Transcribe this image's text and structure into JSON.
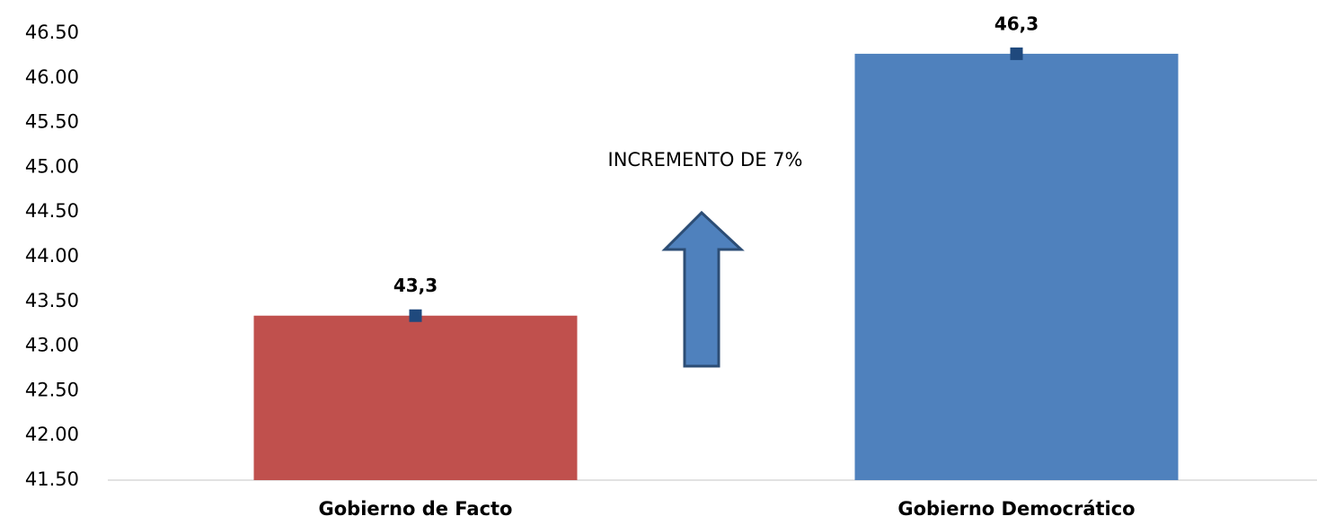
{
  "chart_data": {
    "type": "bar",
    "categories": [
      "Gobierno de Facto",
      "Gobierno Democrático"
    ],
    "values": [
      43.34,
      46.27
    ],
    "value_labels": [
      "43,3",
      "46,3"
    ],
    "colors": [
      "#c0504d",
      "#4f81bd"
    ],
    "marker_color": "#1f497d",
    "ylim": [
      41.5,
      46.5
    ],
    "yticks": [
      {
        "value": 41.5,
        "label": "41.50"
      },
      {
        "value": 42,
        "label": "42.00"
      },
      {
        "value": 42.5,
        "label": "42.50"
      },
      {
        "value": 43,
        "label": "43.00"
      },
      {
        "value": 43.5,
        "label": "43.50"
      },
      {
        "value": 44,
        "label": "44.00"
      },
      {
        "value": 44.5,
        "label": "44.50"
      },
      {
        "value": 45,
        "label": "45.00"
      },
      {
        "value": 45.5,
        "label": "45.50"
      },
      {
        "value": 46,
        "label": "46.00"
      },
      {
        "value": 46.5,
        "label": "46.50"
      }
    ],
    "grid": false,
    "annotation": "INCREMENTO DE 7%"
  }
}
